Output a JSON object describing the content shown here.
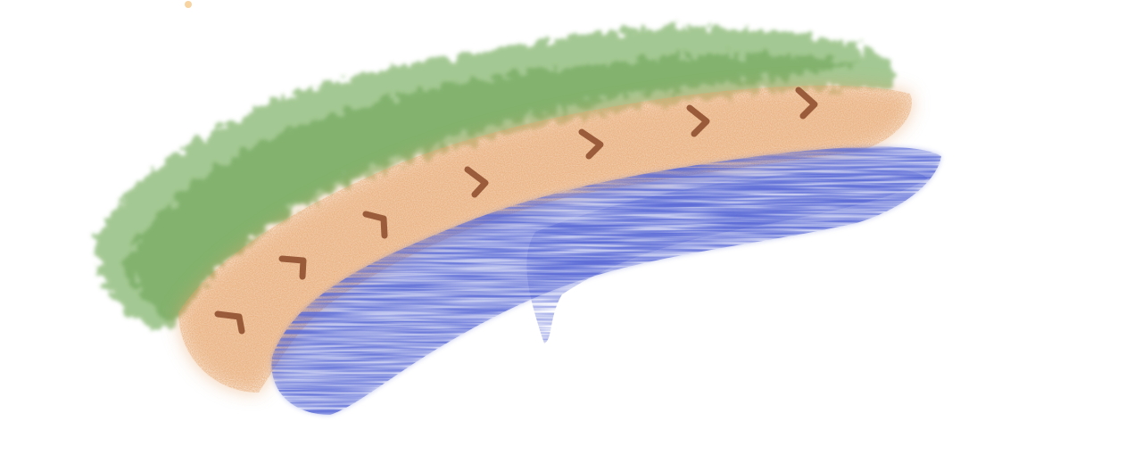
{
  "canvas": {
    "background_color": "#ffffff"
  },
  "layers": [
    {
      "name": "grass",
      "color": "#5a9a3c"
    },
    {
      "name": "sand",
      "color": "#e6a56c"
    },
    {
      "name": "water",
      "color": "#5a6ad6"
    }
  ],
  "footprints": {
    "color": "#8b4a2a",
    "count": 7
  },
  "stray_dot": {
    "color": "#f4c27a"
  }
}
